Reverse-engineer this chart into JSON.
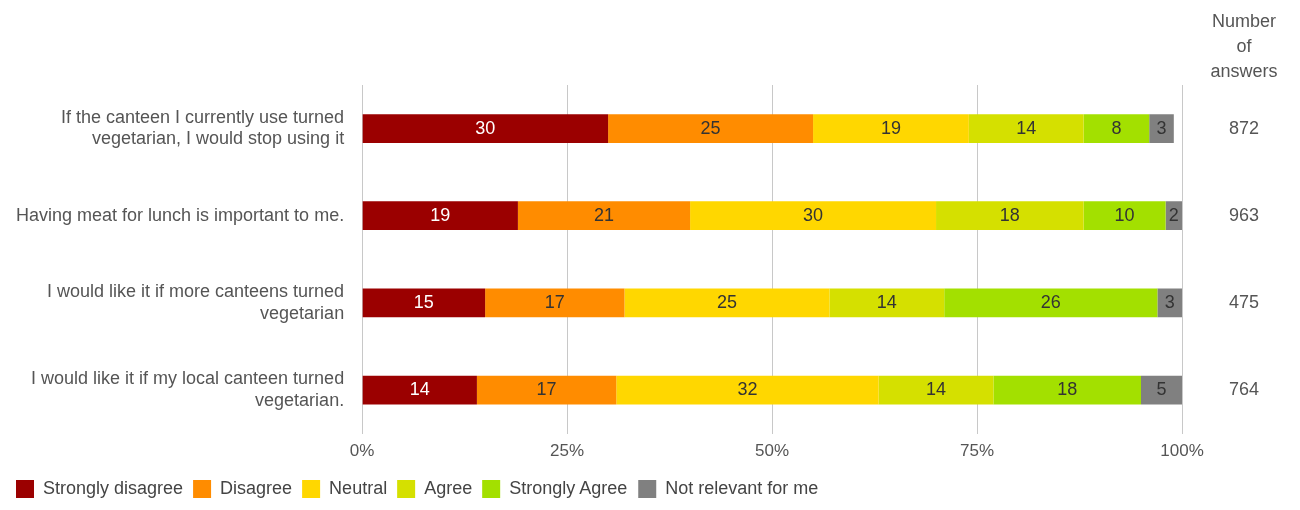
{
  "chart_data": {
    "type": "bar",
    "orientation": "horizontal",
    "stacked": true,
    "data_labels": true,
    "grid": "x",
    "legend": "bottom",
    "categories": [
      "If the canteen I currently use turned vegetarian, I would stop using it",
      "Having meat for lunch is important to me.",
      "I would like it if more canteens turned vegetarian",
      "I would like it if my local canteen turned vegetarian."
    ],
    "series": [
      {
        "name": "Strongly disagree",
        "color": "#9b0000",
        "values": [
          30,
          19,
          15,
          14
        ]
      },
      {
        "name": "Disagree",
        "color": "#ff8c00",
        "values": [
          25,
          21,
          17,
          17
        ]
      },
      {
        "name": "Neutral",
        "color": "#ffd700",
        "values": [
          19,
          30,
          25,
          32
        ]
      },
      {
        "name": "Agree",
        "color": "#d5e000",
        "values": [
          14,
          18,
          14,
          14
        ]
      },
      {
        "name": "Strongly Agree",
        "color": "#a3e000",
        "values": [
          8,
          10,
          26,
          18
        ]
      },
      {
        "name": "Not relevant for me",
        "color": "#808080",
        "values": [
          3,
          2,
          3,
          5
        ]
      }
    ],
    "xlim": [
      0,
      100
    ],
    "xticks": [
      {
        "value": 0,
        "label": "0%"
      },
      {
        "value": 25,
        "label": "25%"
      },
      {
        "value": 50,
        "label": "50%"
      },
      {
        "value": 75,
        "label": "75%"
      },
      {
        "value": 100,
        "label": "100%"
      }
    ],
    "y2label": "Number of answers",
    "annotations": [
      "872",
      "963",
      "475",
      "764"
    ]
  }
}
